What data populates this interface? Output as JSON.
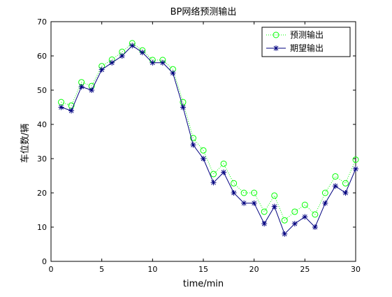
{
  "chart_data": {
    "type": "line",
    "title": "BP网络预测输出",
    "xlabel": "time/min",
    "ylabel": "车位数/辆",
    "xlim": [
      0,
      30
    ],
    "ylim": [
      0,
      70
    ],
    "xticks": [
      0,
      5,
      10,
      15,
      20,
      25,
      30
    ],
    "yticks": [
      0,
      10,
      20,
      30,
      40,
      50,
      60,
      70
    ],
    "grid": false,
    "legend_position": "top-right",
    "x": [
      1,
      2,
      3,
      4,
      5,
      6,
      7,
      8,
      9,
      10,
      11,
      12,
      13,
      14,
      15,
      16,
      17,
      18,
      19,
      20,
      21,
      22,
      23,
      24,
      25,
      26,
      27,
      28,
      29,
      30
    ],
    "series": [
      {
        "name": "预测输出",
        "style": "dotted line with circle markers",
        "color": "#00ff00",
        "values": [
          46.5,
          45.5,
          52.3,
          51.2,
          57.0,
          58.9,
          61.2,
          63.7,
          61.6,
          58.8,
          58.8,
          56.1,
          46.5,
          36.0,
          32.4,
          25.5,
          28.5,
          22.8,
          20.0,
          20.0,
          14.5,
          19.2,
          12.0,
          14.5,
          16.5,
          13.7,
          20.0,
          24.8,
          22.8,
          29.7
        ]
      },
      {
        "name": "期望输出",
        "style": "solid line with star markers",
        "color": "#00007f",
        "values": [
          45,
          44,
          51,
          50,
          56,
          58,
          60,
          63,
          61,
          58,
          58,
          55,
          45,
          34,
          30,
          23,
          26,
          20,
          17,
          17,
          11,
          16,
          8,
          11,
          13,
          10,
          17,
          22,
          20,
          27
        ]
      }
    ]
  }
}
